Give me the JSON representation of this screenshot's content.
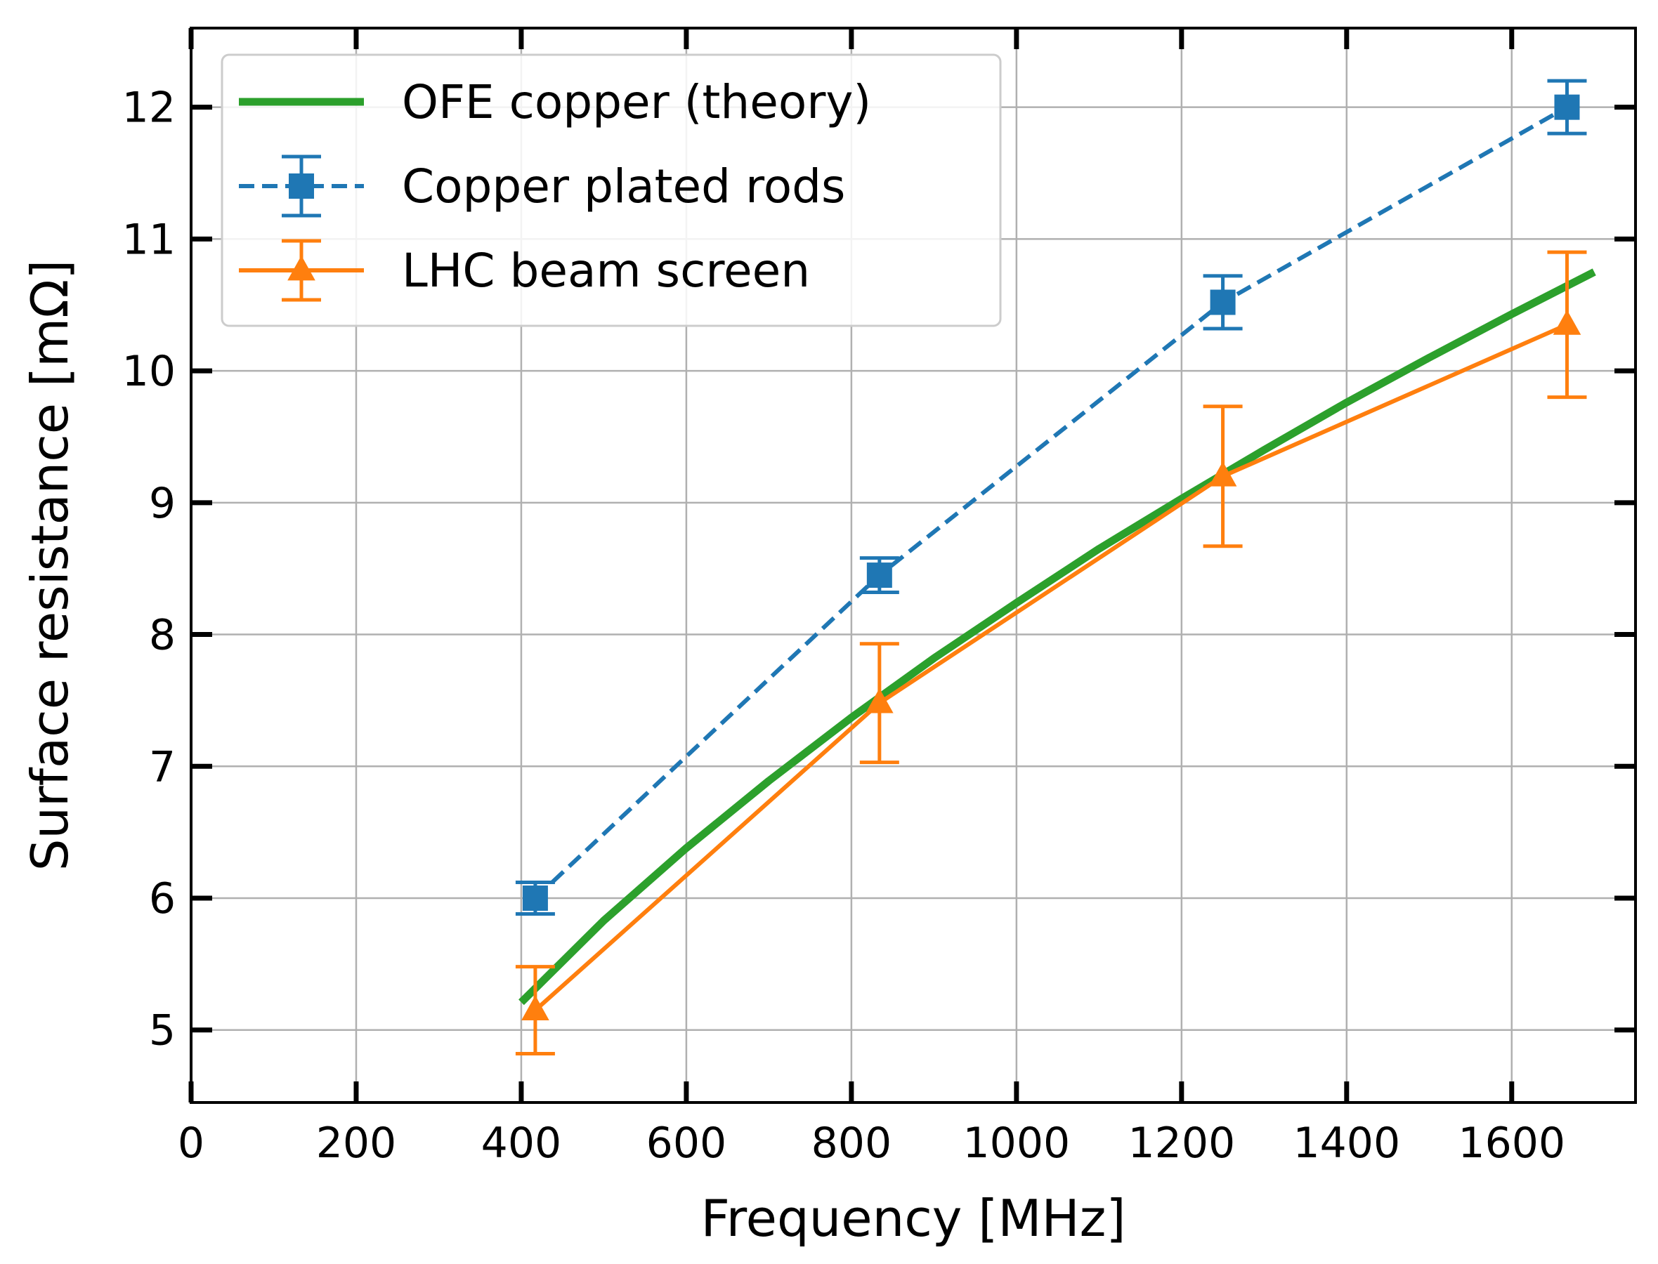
{
  "chart_data": {
    "type": "line",
    "title": "",
    "xlabel": "Frequency [MHz]",
    "ylabel": "Surface resistance [mΩ]",
    "xlim": [
      0,
      1750
    ],
    "ylim": [
      4.45,
      12.6
    ],
    "xticks": [
      0,
      200,
      400,
      600,
      800,
      1000,
      1200,
      1400,
      1600
    ],
    "yticks": [
      5,
      6,
      7,
      8,
      9,
      10,
      11,
      12
    ],
    "xtick_labels": [
      "0",
      "200",
      "400",
      "600",
      "800",
      "1000",
      "1200",
      "1400",
      "1600"
    ],
    "ytick_labels": [
      "5",
      "6",
      "7",
      "8",
      "9",
      "10",
      "11",
      "12"
    ],
    "grid": true,
    "legend_position": "top-left",
    "series": [
      {
        "name": "OFE copper (theory)",
        "style": "solid",
        "marker": "none",
        "color": "#2ca02c",
        "x": [
          400,
          500,
          600,
          700,
          800,
          900,
          1000,
          1100,
          1200,
          1300,
          1400,
          1500,
          1600,
          1700
        ],
        "y": [
          5.21,
          5.83,
          6.38,
          6.89,
          7.37,
          7.82,
          8.24,
          8.65,
          9.03,
          9.4,
          9.76,
          10.1,
          10.43,
          10.75
        ]
      },
      {
        "name": "Copper plated rods",
        "style": "dashed",
        "marker": "square",
        "color": "#1f77b4",
        "x": [
          417,
          834,
          1250,
          1667
        ],
        "y": [
          6.0,
          8.45,
          10.52,
          12.0
        ],
        "yerr": [
          0.12,
          0.13,
          0.2,
          0.2
        ]
      },
      {
        "name": "LHC beam screen",
        "style": "solid",
        "marker": "triangle",
        "color": "#ff7f0e",
        "x": [
          417,
          834,
          1250,
          1667
        ],
        "y": [
          5.15,
          7.48,
          9.2,
          10.35
        ],
        "yerr": [
          0.33,
          0.45,
          0.53,
          0.55
        ]
      }
    ]
  }
}
